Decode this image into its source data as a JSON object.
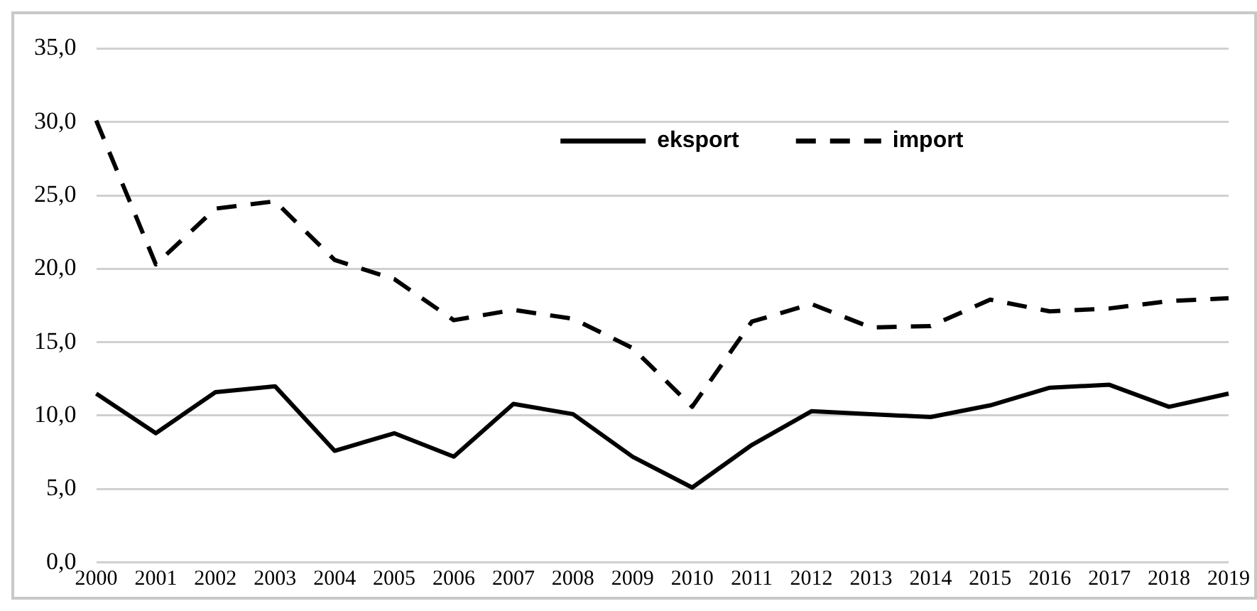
{
  "chart_data": {
    "type": "line",
    "categories": [
      "2000",
      "2001",
      "2002",
      "2003",
      "2004",
      "2005",
      "2006",
      "2007",
      "2008",
      "2009",
      "2010",
      "2011",
      "2012",
      "2013",
      "2014",
      "2015",
      "2016",
      "2017",
      "2018",
      "2019"
    ],
    "series": [
      {
        "name": "eksport",
        "color": "#000000",
        "line_style": "solid",
        "values": [
          11.5,
          8.8,
          11.6,
          12.0,
          7.6,
          8.8,
          7.2,
          10.8,
          10.1,
          7.2,
          5.1,
          8.0,
          10.3,
          10.1,
          9.9,
          10.7,
          11.9,
          12.1,
          10.6,
          11.5
        ]
      },
      {
        "name": "import",
        "color": "#000000",
        "line_style": "dashed",
        "values": [
          30.1,
          20.3,
          24.1,
          24.6,
          20.6,
          19.3,
          16.5,
          17.2,
          16.6,
          14.6,
          10.6,
          16.4,
          17.6,
          16.0,
          16.1,
          17.9,
          17.1,
          17.3,
          17.8,
          18.0
        ]
      }
    ],
    "ylim": [
      0,
      35
    ],
    "yticks": [
      {
        "value": 0,
        "label": "0,0"
      },
      {
        "value": 5,
        "label": "5,0"
      },
      {
        "value": 10,
        "label": "10,0"
      },
      {
        "value": 15,
        "label": "15,0"
      },
      {
        "value": 20,
        "label": "20,0"
      },
      {
        "value": 25,
        "label": "25,0"
      },
      {
        "value": 30,
        "label": "30,0"
      },
      {
        "value": 35,
        "label": "35,0"
      }
    ],
    "grid": "y",
    "legend": "top",
    "marker": "none"
  }
}
